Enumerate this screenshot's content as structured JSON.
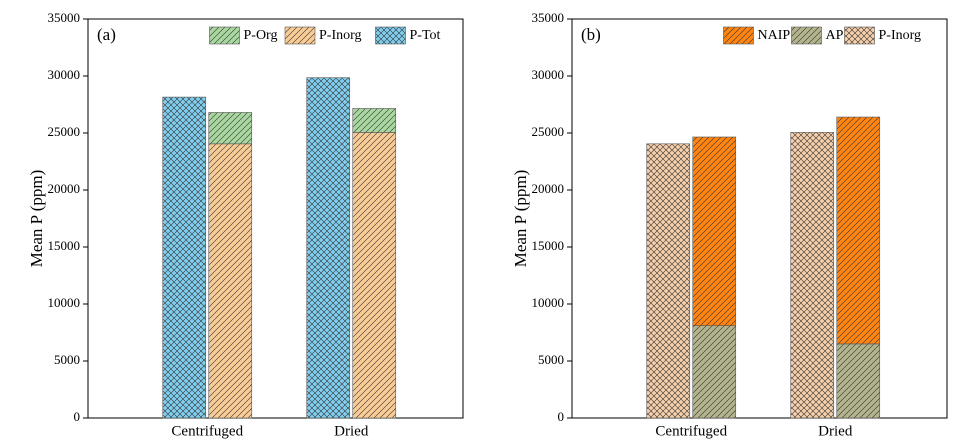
{
  "chart_data": [
    {
      "type": "bar",
      "annotation": "(a)",
      "ylabel": "Mean P (ppm)",
      "categories": [
        "Centrifuged",
        "Dried"
      ],
      "ylim": [
        0,
        35000
      ],
      "yticks": [
        0,
        5000,
        10000,
        15000,
        20000,
        25000,
        30000,
        35000
      ],
      "legend": "upper right",
      "series": [
        {
          "name": "P-Org",
          "color": "#a8d8a0",
          "hatch": "diag",
          "position": "right",
          "values": [
            2750,
            2100
          ]
        },
        {
          "name": "P-Inorg",
          "color": "#f9cc95",
          "hatch": "diag",
          "position": "right",
          "values": [
            24050,
            25050
          ]
        },
        {
          "name": "P-Tot",
          "color": "#80cff0",
          "hatch": "cross",
          "position": "left",
          "values": [
            28150,
            29850
          ]
        }
      ]
    },
    {
      "type": "bar",
      "annotation": "(b)",
      "ylabel": "Mean P (ppm)",
      "categories": [
        "Centrifuged",
        "Dried"
      ],
      "ylim": [
        0,
        35000
      ],
      "yticks": [
        0,
        5000,
        10000,
        15000,
        20000,
        25000,
        30000,
        35000
      ],
      "legend": "upper right",
      "series": [
        {
          "name": "NAIP",
          "color": "#ff8410",
          "hatch": "diag",
          "position": "right",
          "values": [
            16550,
            19900
          ]
        },
        {
          "name": "AP",
          "color": "#b3b38c",
          "hatch": "diag",
          "position": "right",
          "values": [
            8100,
            6500
          ]
        },
        {
          "name": "P-Inorg",
          "color": "#f6cfaa",
          "hatch": "cross",
          "position": "left",
          "values": [
            24050,
            25050
          ]
        }
      ]
    }
  ]
}
